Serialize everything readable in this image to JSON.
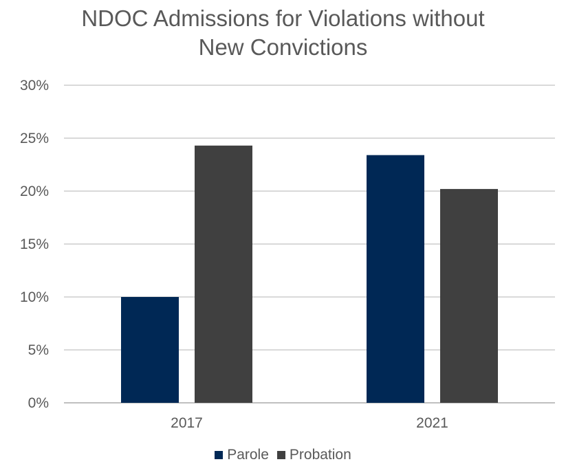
{
  "chart_data": {
    "type": "bar",
    "title": "NDOC Admissions for Violations without New Convictions",
    "title_lines": [
      "NDOC Admissions for Violations without",
      "New Convictions"
    ],
    "categories": [
      "2017",
      "2021"
    ],
    "series": [
      {
        "name": "Parole",
        "color": "#002855",
        "values": [
          10.0,
          23.4
        ]
      },
      {
        "name": "Probation",
        "color": "#404040",
        "values": [
          24.3,
          20.2
        ]
      }
    ],
    "ylim": [
      0,
      30
    ],
    "yticks": [
      0,
      5,
      10,
      15,
      20,
      25,
      30
    ],
    "ytick_labels": [
      "0%",
      "5%",
      "10%",
      "15%",
      "20%",
      "25%",
      "30%"
    ],
    "grid": true,
    "legend": "bottom"
  }
}
